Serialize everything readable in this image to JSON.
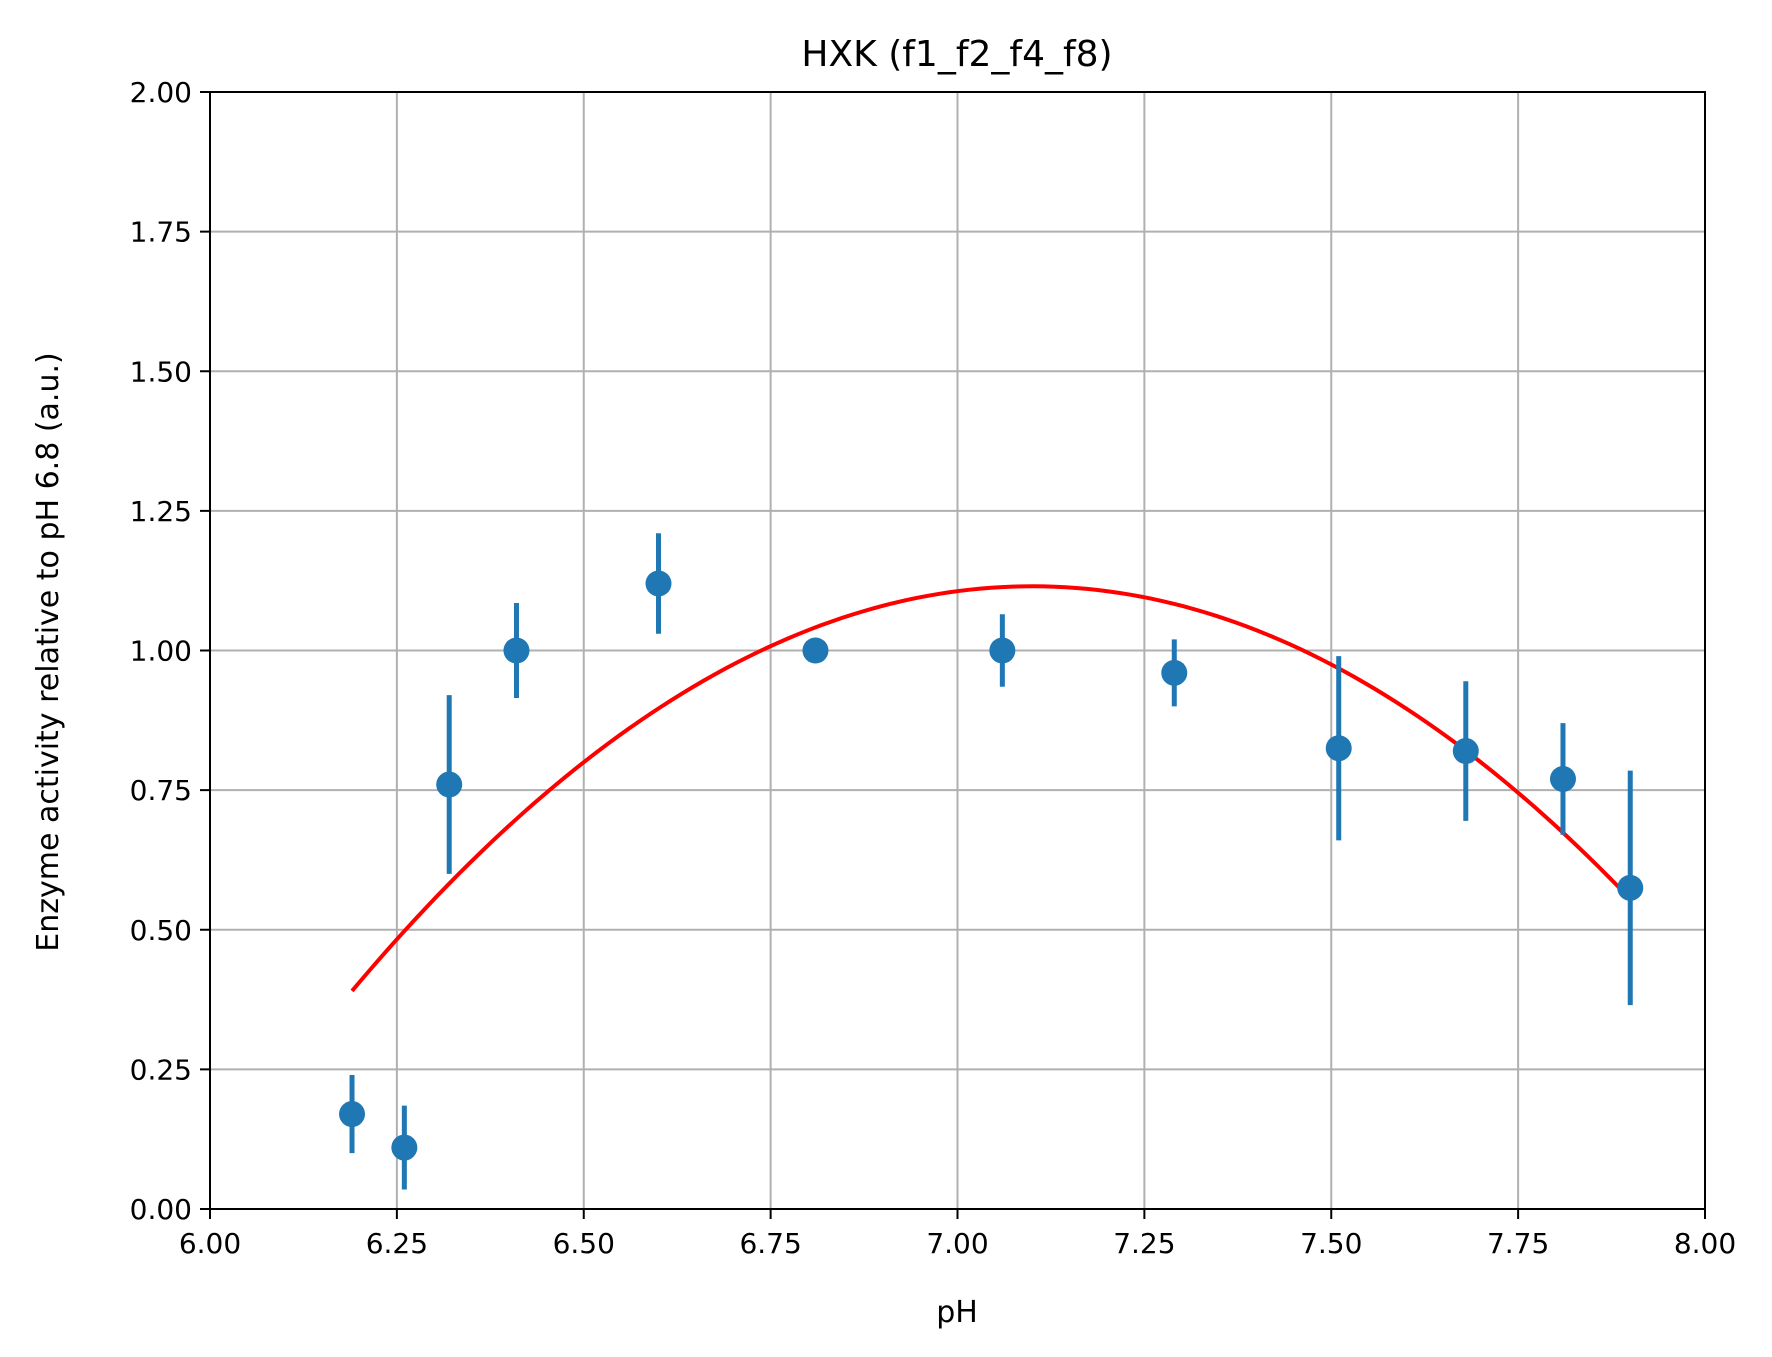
{
  "chart_data": {
    "type": "scatter",
    "title": "HXK (f1_f2_f4_f8)",
    "xlabel": "pH",
    "ylabel": "Enzyme activity relative to pH 6.8 (a.u.)",
    "xlim": [
      6.0,
      8.0
    ],
    "ylim": [
      0.0,
      2.0
    ],
    "x_ticks": [
      "6.00",
      "6.25",
      "6.50",
      "6.75",
      "7.00",
      "7.25",
      "7.50",
      "7.75",
      "8.00"
    ],
    "y_ticks": [
      "0.00",
      "0.25",
      "0.50",
      "0.75",
      "1.00",
      "1.25",
      "1.50",
      "1.75",
      "2.00"
    ],
    "grid": true,
    "series": [
      {
        "type": "errorbar",
        "color": "#1f77b4",
        "points": [
          {
            "x": 6.19,
            "y": 0.17,
            "err": 0.07
          },
          {
            "x": 6.26,
            "y": 0.11,
            "err": 0.075
          },
          {
            "x": 6.32,
            "y": 0.76,
            "err": 0.16
          },
          {
            "x": 6.41,
            "y": 1.0,
            "err": 0.085
          },
          {
            "x": 6.6,
            "y": 1.12,
            "err": 0.09
          },
          {
            "x": 6.81,
            "y": 1.0,
            "err": 0.0
          },
          {
            "x": 7.06,
            "y": 1.0,
            "err": 0.065
          },
          {
            "x": 7.29,
            "y": 0.96,
            "err": 0.06
          },
          {
            "x": 7.51,
            "y": 0.825,
            "err": 0.165
          },
          {
            "x": 7.68,
            "y": 0.82,
            "err": 0.125
          },
          {
            "x": 7.81,
            "y": 0.77,
            "err": 0.1
          },
          {
            "x": 7.9,
            "y": 0.575,
            "err": 0.21
          }
        ]
      },
      {
        "type": "fit-line",
        "color": "#ff0000",
        "x_range": [
          6.19,
          7.9
        ],
        "vertex": {
          "x": 7.1,
          "y": 1.115
        },
        "quadratic_coeff": -0.875
      }
    ]
  }
}
